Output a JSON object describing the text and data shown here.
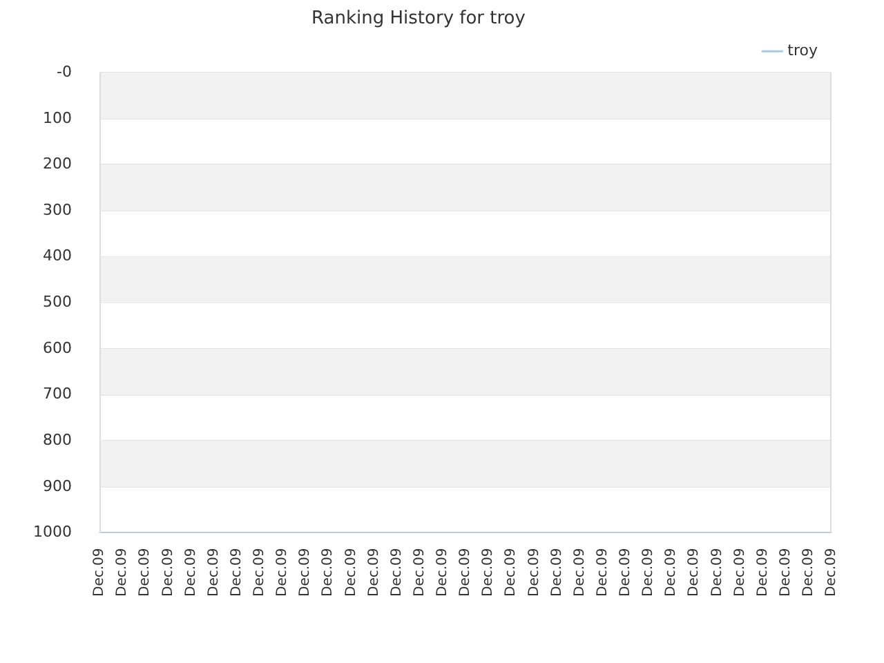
{
  "chart_data": {
    "type": "line",
    "title": "Ranking History for troy",
    "categories": [
      "Dec.09",
      "Dec.09",
      "Dec.09",
      "Dec.09",
      "Dec.09",
      "Dec.09",
      "Dec.09",
      "Dec.09",
      "Dec.09",
      "Dec.09",
      "Dec.09",
      "Dec.09",
      "Dec.09",
      "Dec.09",
      "Dec.09",
      "Dec.09",
      "Dec.09",
      "Dec.09",
      "Dec.09",
      "Dec.09",
      "Dec.09",
      "Dec.09",
      "Dec.09",
      "Dec.09",
      "Dec.09",
      "Dec.09",
      "Dec.09",
      "Dec.09",
      "Dec.09",
      "Dec.09",
      "Dec.09",
      "Dec.09",
      "Dec.09"
    ],
    "series": [
      {
        "name": "troy",
        "color": "#a8c8ec",
        "values": [
          1000,
          1000,
          1000,
          1000,
          1000,
          1000,
          1000,
          1000,
          1000,
          1000,
          1000,
          1000,
          1000,
          1000,
          1000,
          1000,
          1000,
          1000,
          1000,
          1000,
          1000,
          1000,
          1000,
          1000,
          1000,
          1000,
          1000,
          1000,
          1000,
          1000,
          1000,
          1000,
          1000
        ]
      }
    ],
    "ylim": [
      1000,
      0
    ],
    "yticks": [
      {
        "value": 0,
        "label": "-0"
      },
      100,
      200,
      300,
      400,
      500,
      600,
      700,
      800,
      900,
      1000
    ],
    "bands": [
      {
        "axis": "y",
        "from": 0,
        "to": 100,
        "color": "#f2f2f2"
      },
      {
        "axis": "y",
        "from": 200,
        "to": 300,
        "color": "#f2f2f2"
      },
      {
        "axis": "y",
        "from": 400,
        "to": 500,
        "color": "#f2f2f2"
      },
      {
        "axis": "y",
        "from": 600,
        "to": 700,
        "color": "#f2f2f2"
      },
      {
        "axis": "y",
        "from": 800,
        "to": 900,
        "color": "#f2f2f2"
      }
    ],
    "grid": "y",
    "legend": "top right",
    "marker": "none",
    "line_style": "solid"
  }
}
